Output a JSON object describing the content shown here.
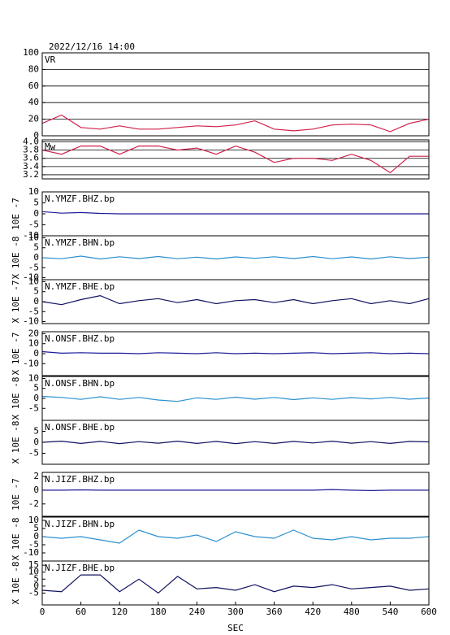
{
  "header": {
    "title": "2022/12/16 14:00"
  },
  "chart_data": [
    {
      "type": "line",
      "title": "VR",
      "ylim": [
        0,
        100
      ],
      "yticks": [
        0,
        20,
        40,
        60,
        80,
        100
      ],
      "grid": true,
      "color": "#d0204a",
      "x": [
        0,
        30,
        60,
        90,
        120,
        150,
        180,
        210,
        240,
        270,
        300,
        330,
        360,
        390,
        420,
        450,
        480,
        510,
        540,
        570,
        600
      ],
      "values": [
        15,
        25,
        10,
        8,
        12,
        8,
        8,
        10,
        12,
        11,
        13,
        18,
        8,
        6,
        8,
        13,
        14,
        13,
        5,
        15,
        20
      ]
    },
    {
      "type": "line",
      "title": "Mw",
      "ylim": [
        3.1,
        4.05
      ],
      "yticks": [
        3.2,
        3.4,
        3.6,
        3.8,
        {
          "value": 4,
          "label": "4.0"
        }
      ],
      "grid": true,
      "color": "#d0204a",
      "x": [
        0,
        30,
        60,
        90,
        120,
        150,
        180,
        210,
        240,
        270,
        300,
        330,
        360,
        390,
        420,
        450,
        480,
        510,
        540,
        570,
        600
      ],
      "values": [
        3.8,
        3.7,
        3.9,
        3.9,
        3.7,
        3.9,
        3.9,
        3.8,
        3.85,
        3.7,
        3.9,
        3.75,
        3.5,
        3.6,
        3.6,
        3.55,
        3.7,
        3.55,
        3.25,
        3.65,
        3.65
      ]
    },
    {
      "type": "line",
      "title": "N.YMZF.BHZ.bp",
      "ylabel": "10E -7",
      "ylim": [
        -10,
        10
      ],
      "yticks": [
        -10,
        -5,
        0,
        5,
        10
      ],
      "color": "#1a1a9a",
      "x": [
        0,
        30,
        60,
        90,
        120,
        150,
        180,
        210,
        240,
        270,
        300,
        330,
        360,
        390,
        420,
        450,
        480,
        510,
        540,
        570,
        600
      ],
      "values": [
        1,
        0.3,
        0.6,
        0.2,
        0,
        0,
        0,
        0,
        0,
        0,
        0,
        0,
        0,
        0,
        0,
        0,
        0,
        0,
        0,
        0,
        0
      ]
    },
    {
      "type": "line",
      "title": "N.YMZF.BHN.bp",
      "ylabel": "X 10E -8",
      "ylim": [
        -11,
        11
      ],
      "yticks": [
        -10,
        -5,
        0,
        5,
        10
      ],
      "color": "#2a90d0",
      "x": [
        0,
        30,
        60,
        90,
        120,
        150,
        180,
        210,
        240,
        270,
        300,
        330,
        360,
        390,
        420,
        450,
        480,
        510,
        540,
        570,
        600
      ],
      "values": [
        0,
        -0.5,
        0.8,
        -0.6,
        0.5,
        -0.4,
        0.6,
        -0.5,
        0.3,
        -0.6,
        0.4,
        -0.3,
        0.5,
        -0.4,
        0.6,
        -0.5,
        0.4,
        -0.6,
        0.5,
        -0.4,
        0.3
      ]
    },
    {
      "type": "line",
      "title": "N.YMZF.BHE.bp",
      "ylabel": "X 10E -7",
      "ylim": [
        -11,
        11
      ],
      "yticks": [
        -10,
        -5,
        0,
        5,
        10
      ],
      "color": "#101060",
      "x": [
        0,
        30,
        60,
        90,
        120,
        150,
        180,
        210,
        240,
        270,
        300,
        330,
        360,
        390,
        420,
        450,
        480,
        510,
        540,
        570,
        600
      ],
      "values": [
        0,
        -1.5,
        1,
        3,
        -1,
        0.5,
        1.5,
        -0.5,
        1,
        -1,
        0.5,
        1,
        -0.5,
        1,
        -1,
        0.5,
        1.5,
        -1,
        0.5,
        -1,
        1.5
      ]
    },
    {
      "type": "line",
      "title": "N.ONSF.BHZ.bp",
      "ylabel": "X 10E -7",
      "ylim": [
        -22,
        22
      ],
      "yticks": [
        -10,
        0,
        10,
        20
      ],
      "color": "#1a1a9a",
      "x": [
        0,
        30,
        60,
        90,
        120,
        150,
        180,
        210,
        240,
        270,
        300,
        330,
        360,
        390,
        420,
        450,
        480,
        510,
        540,
        570,
        600
      ],
      "values": [
        2,
        0.5,
        1,
        0.5,
        0.5,
        0,
        1,
        0.5,
        0,
        1,
        0,
        0.5,
        0,
        0.5,
        1,
        0,
        0.5,
        1,
        0,
        0.5,
        0
      ]
    },
    {
      "type": "line",
      "title": "N.ONSF.BHN.bp",
      "ylabel": "X 10E -8",
      "ylim": [
        -11,
        11
      ],
      "yticks": [
        -5,
        0,
        5,
        10
      ],
      "color": "#2a90d0",
      "x": [
        0,
        30,
        60,
        90,
        120,
        150,
        180,
        210,
        240,
        270,
        300,
        330,
        360,
        390,
        420,
        450,
        480,
        510,
        540,
        570,
        600
      ],
      "values": [
        1,
        0.5,
        -0.5,
        0.8,
        -0.5,
        0.5,
        -0.8,
        -1.5,
        0.3,
        -0.5,
        0.6,
        -0.4,
        0.5,
        -0.6,
        0.3,
        -0.5,
        0.4,
        -0.3,
        0.5,
        -0.4,
        0.2
      ]
    },
    {
      "type": "line",
      "title": "N.ONSF.BHE.bp",
      "ylabel": "X 10E -8",
      "ylim": [
        -10,
        10
      ],
      "yticks": [
        -5,
        0,
        5
      ],
      "color": "#101060",
      "x": [
        0,
        30,
        60,
        90,
        120,
        150,
        180,
        210,
        240,
        270,
        300,
        330,
        360,
        390,
        420,
        450,
        480,
        510,
        540,
        570,
        600
      ],
      "values": [
        0,
        0.5,
        -0.5,
        0.4,
        -0.6,
        0.3,
        -0.4,
        0.5,
        -0.5,
        0.4,
        -0.6,
        0.3,
        -0.5,
        0.4,
        -0.3,
        0.5,
        -0.4,
        0.3,
        -0.5,
        0.4,
        0.2
      ]
    },
    {
      "type": "line",
      "title": "N.JIZF.BHZ.bp",
      "ylabel": "10E -7",
      "ylim": [
        -3.8,
        2.6
      ],
      "yticks": [
        -2,
        0,
        2
      ],
      "color": "#1a1a9a",
      "x": [
        0,
        30,
        60,
        90,
        120,
        150,
        180,
        210,
        240,
        270,
        300,
        330,
        360,
        390,
        420,
        450,
        480,
        510,
        540,
        570,
        600
      ],
      "values": [
        0,
        0,
        0.05,
        0,
        0,
        0,
        0,
        0,
        0,
        0,
        0,
        0,
        0,
        0,
        0,
        0.1,
        0,
        -0.05,
        0,
        0,
        0
      ]
    },
    {
      "type": "line",
      "title": "N.JIZF.BHN.bp",
      "ylabel": "X 10E -8",
      "ylim": [
        -15,
        12
      ],
      "yticks": [
        -10,
        -5,
        0,
        5,
        10
      ],
      "color": "#2a90d0",
      "x": [
        0,
        30,
        60,
        90,
        120,
        150,
        180,
        210,
        240,
        270,
        300,
        330,
        360,
        390,
        420,
        450,
        480,
        510,
        540,
        570,
        600
      ],
      "values": [
        0,
        -1,
        0,
        -2,
        -4,
        4,
        0,
        -1,
        1,
        -3,
        3,
        0,
        -1,
        4,
        -1,
        -2,
        0,
        -2,
        -1,
        -1,
        0
      ]
    },
    {
      "type": "line",
      "title": "N.JIZF.BHE.bp",
      "ylabel": "X 10E -8",
      "ylim": [
        -13.5,
        18
      ],
      "yticks": [
        -5,
        0,
        5,
        10,
        15
      ],
      "color": "#101060",
      "xlabel": "SEC",
      "xlim": [
        0,
        600
      ],
      "xticks": [
        0,
        60,
        120,
        180,
        240,
        300,
        360,
        420,
        480,
        540,
        600
      ],
      "x": [
        0,
        30,
        60,
        90,
        120,
        150,
        180,
        210,
        240,
        270,
        300,
        330,
        360,
        390,
        420,
        450,
        480,
        510,
        540,
        570,
        600
      ],
      "values": [
        -3,
        -4,
        8,
        8,
        -4,
        5,
        -5,
        7,
        -2,
        -1,
        -3,
        1,
        -4,
        0,
        -1,
        1,
        -2,
        -1,
        0,
        -3,
        -2
      ]
    }
  ]
}
